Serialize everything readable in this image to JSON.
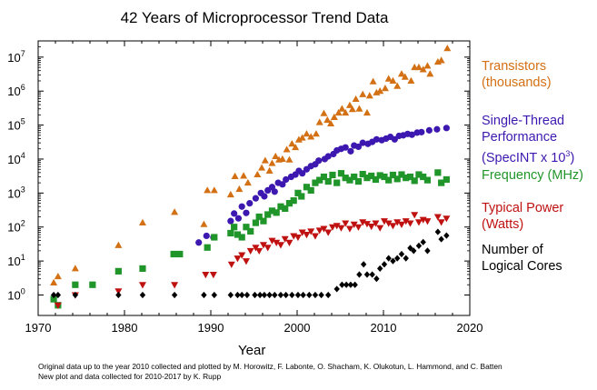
{
  "colors": {
    "transistors": "#d47014",
    "single_thread": "#3d18b0",
    "frequency": "#20952a",
    "power": "#c01111",
    "cores": "#000000"
  },
  "chart_data": {
    "type": "scatter",
    "title": "42 Years of Microprocessor Trend Data",
    "xlabel": "Year",
    "ylabel": "",
    "xlim": [
      1970,
      2020
    ],
    "ylim": [
      0.25,
      30000000
    ],
    "yscale": "log",
    "x_ticks": [
      1970,
      1980,
      1990,
      2000,
      2010,
      2020
    ],
    "y_ticks": [
      1,
      10,
      100,
      1000,
      10000,
      100000,
      1000000,
      10000000
    ],
    "y_tick_labels": [
      "10^0",
      "10^1",
      "10^2",
      "10^3",
      "10^4",
      "10^5",
      "10^6",
      "10^7"
    ],
    "legend_placement": "right",
    "grid": false,
    "series": [
      {
        "name": "Transistors (thousands)",
        "legend_lines": [
          "Transistors",
          "(thousands)"
        ],
        "marker": "triangle-up",
        "points": [
          [
            1971.8,
            2.3
          ],
          [
            1972.3,
            3.5
          ],
          [
            1974.3,
            6
          ],
          [
            1979.3,
            29
          ],
          [
            1982.1,
            134
          ],
          [
            1985.8,
            275
          ],
          [
            1989.2,
            120
          ],
          [
            1989.6,
            1200
          ],
          [
            1990.4,
            1200
          ],
          [
            1992.3,
            900
          ],
          [
            1992.8,
            3100
          ],
          [
            1993.3,
            1300
          ],
          [
            1993.8,
            3200
          ],
          [
            1994.3,
            2000
          ],
          [
            1995.4,
            3500
          ],
          [
            1995.9,
            5500
          ],
          [
            1996.3,
            9000
          ],
          [
            1996.8,
            4500
          ],
          [
            1997.1,
            7500
          ],
          [
            1997.5,
            12000
          ],
          [
            1997.9,
            9500
          ],
          [
            1998.3,
            10000
          ],
          [
            1998.8,
            19000
          ],
          [
            1999.1,
            9500
          ],
          [
            1999.4,
            28000
          ],
          [
            1999.8,
            22000
          ],
          [
            2000.2,
            37000
          ],
          [
            2000.6,
            42000
          ],
          [
            2001.1,
            55000
          ],
          [
            2001.6,
            45000
          ],
          [
            2002.2,
            55000
          ],
          [
            2002.6,
            120000
          ],
          [
            2003.1,
            220000
          ],
          [
            2003.5,
            140000
          ],
          [
            2003.9,
            110000
          ],
          [
            2004.3,
            170000
          ],
          [
            2004.8,
            230000
          ],
          [
            2005.2,
            300000
          ],
          [
            2005.6,
            230000
          ],
          [
            2006.1,
            380000
          ],
          [
            2006.4,
            290000
          ],
          [
            2006.8,
            580000
          ],
          [
            2007.2,
            300000
          ],
          [
            2007.6,
            800000
          ],
          [
            2008.1,
            230000
          ],
          [
            2008.4,
            730000
          ],
          [
            2008.8,
            1900000
          ],
          [
            2009.2,
            900000
          ],
          [
            2009.6,
            1000000
          ],
          [
            2010.2,
            1200000
          ],
          [
            2010.6,
            2300000
          ],
          [
            2011.1,
            2000000
          ],
          [
            2011.6,
            1400000
          ],
          [
            2012.1,
            3200000
          ],
          [
            2012.5,
            2600000
          ],
          [
            2013.2,
            2000000
          ],
          [
            2013.6,
            5000000
          ],
          [
            2014.1,
            5000000
          ],
          [
            2014.6,
            4300000
          ],
          [
            2015.1,
            5500000
          ],
          [
            2015.4,
            3200000
          ],
          [
            2016.3,
            7200000
          ],
          [
            2016.7,
            8000000
          ],
          [
            2017.4,
            18000000
          ]
        ]
      },
      {
        "name": "Single-Thread Performance (SpecINT x 10^3)",
        "legend_lines": [
          "Single-Thread",
          "Performance",
          "(SpecINT x 10^3)"
        ],
        "marker": "circle",
        "points": [
          [
            1988.6,
            35
          ],
          [
            1989.5,
            55
          ],
          [
            1990.3,
            50
          ],
          [
            1992.3,
            150
          ],
          [
            1992.7,
            250
          ],
          [
            1993.2,
            180
          ],
          [
            1993.6,
            400
          ],
          [
            1994.1,
            260
          ],
          [
            1994.5,
            500
          ],
          [
            1995.2,
            700
          ],
          [
            1995.8,
            1000
          ],
          [
            1996.2,
            800
          ],
          [
            1996.6,
            1200
          ],
          [
            1997.1,
            1500
          ],
          [
            1997.4,
            1100
          ],
          [
            1997.8,
            2000
          ],
          [
            1998.3,
            1800
          ],
          [
            1998.7,
            2500
          ],
          [
            1999.3,
            3000
          ],
          [
            1999.8,
            3500
          ],
          [
            2000.2,
            4500
          ],
          [
            2000.6,
            3800
          ],
          [
            2001.1,
            5000
          ],
          [
            2001.6,
            6200
          ],
          [
            2002.1,
            7000
          ],
          [
            2002.5,
            9000
          ],
          [
            2003.2,
            10000
          ],
          [
            2003.6,
            12000
          ],
          [
            2004.2,
            14000
          ],
          [
            2004.6,
            18000
          ],
          [
            2005.1,
            20000
          ],
          [
            2005.6,
            22000
          ],
          [
            2006.2,
            17000
          ],
          [
            2006.6,
            25000
          ],
          [
            2007.1,
            23000
          ],
          [
            2007.6,
            30000
          ],
          [
            2008.2,
            28000
          ],
          [
            2008.7,
            32000
          ],
          [
            2009.2,
            38000
          ],
          [
            2009.8,
            36000
          ],
          [
            2010.3,
            40000
          ],
          [
            2010.8,
            45000
          ],
          [
            2011.3,
            38000
          ],
          [
            2011.8,
            48000
          ],
          [
            2012.3,
            50000
          ],
          [
            2012.8,
            55000
          ],
          [
            2013.3,
            52000
          ],
          [
            2013.9,
            60000
          ],
          [
            2014.4,
            62000
          ],
          [
            2015.3,
            70000
          ],
          [
            2016.2,
            75000
          ],
          [
            2017.3,
            82000
          ]
        ]
      },
      {
        "name": "Frequency (MHz)",
        "legend_lines": [
          "Frequency (MHz)"
        ],
        "marker": "square",
        "points": [
          [
            1971.8,
            0.75
          ],
          [
            1972.3,
            0.5
          ],
          [
            1974.3,
            2
          ],
          [
            1976.3,
            2
          ],
          [
            1979.3,
            5
          ],
          [
            1982.1,
            6
          ],
          [
            1985.7,
            16
          ],
          [
            1986.4,
            16
          ],
          [
            1989.6,
            25
          ],
          [
            1990.4,
            50
          ],
          [
            1992.3,
            66
          ],
          [
            1992.7,
            100
          ],
          [
            1993.1,
            60
          ],
          [
            1993.6,
            50
          ],
          [
            1994.1,
            100
          ],
          [
            1994.6,
            75
          ],
          [
            1995.2,
            133
          ],
          [
            1995.6,
            200
          ],
          [
            1996.1,
            150
          ],
          [
            1996.6,
            233
          ],
          [
            1997.1,
            300
          ],
          [
            1997.6,
            266
          ],
          [
            1998.1,
            400
          ],
          [
            1998.6,
            350
          ],
          [
            1999.1,
            500
          ],
          [
            1999.6,
            600
          ],
          [
            2000.1,
            1000
          ],
          [
            2000.5,
            800
          ],
          [
            2001.1,
            1500
          ],
          [
            2001.6,
            1200
          ],
          [
            2002.1,
            2000
          ],
          [
            2002.6,
            2400
          ],
          [
            2003.1,
            3000
          ],
          [
            2003.6,
            2200
          ],
          [
            2004.1,
            3400
          ],
          [
            2004.6,
            2000
          ],
          [
            2005.1,
            3800
          ],
          [
            2005.6,
            2800
          ],
          [
            2006.1,
            2400
          ],
          [
            2006.6,
            3000
          ],
          [
            2007.1,
            2200
          ],
          [
            2007.6,
            3600
          ],
          [
            2008.1,
            2800
          ],
          [
            2008.6,
            3200
          ],
          [
            2009.1,
            2500
          ],
          [
            2009.6,
            3300
          ],
          [
            2010.1,
            3000
          ],
          [
            2010.6,
            2400
          ],
          [
            2011.1,
            3400
          ],
          [
            2011.6,
            2600
          ],
          [
            2012.1,
            3500
          ],
          [
            2012.6,
            2800
          ],
          [
            2013.1,
            3000
          ],
          [
            2013.6,
            2300
          ],
          [
            2014.1,
            3500
          ],
          [
            2014.6,
            3000
          ],
          [
            2015.1,
            2400
          ],
          [
            2016.3,
            4000
          ],
          [
            2016.7,
            2000
          ],
          [
            2017.3,
            2500
          ]
        ]
      },
      {
        "name": "Typical Power (Watts)",
        "legend_lines": [
          "Typical Power",
          "(Watts)"
        ],
        "marker": "triangle-down",
        "points": [
          [
            1972.3,
            0.5
          ],
          [
            1974.3,
            1
          ],
          [
            1979.3,
            1.3
          ],
          [
            1982.1,
            2
          ],
          [
            1985.8,
            2
          ],
          [
            1989.4,
            4
          ],
          [
            1990.3,
            4
          ],
          [
            1992.4,
            8
          ],
          [
            1993.1,
            12
          ],
          [
            1993.6,
            15
          ],
          [
            1994.1,
            10
          ],
          [
            1994.6,
            20
          ],
          [
            1995.2,
            25
          ],
          [
            1995.6,
            20
          ],
          [
            1996.1,
            30
          ],
          [
            1996.6,
            25
          ],
          [
            1997.1,
            40
          ],
          [
            1997.6,
            35
          ],
          [
            1998.1,
            30
          ],
          [
            1998.6,
            45
          ],
          [
            1999.1,
            35
          ],
          [
            1999.6,
            55
          ],
          [
            2000.1,
            50
          ],
          [
            2000.6,
            70
          ],
          [
            2001.1,
            60
          ],
          [
            2001.6,
            75
          ],
          [
            2002.1,
            55
          ],
          [
            2002.6,
            80
          ],
          [
            2003.1,
            90
          ],
          [
            2003.6,
            70
          ],
          [
            2004.1,
            100
          ],
          [
            2004.6,
            110
          ],
          [
            2005.1,
            95
          ],
          [
            2005.6,
            130
          ],
          [
            2006.1,
            90
          ],
          [
            2006.6,
            120
          ],
          [
            2007.1,
            100
          ],
          [
            2007.6,
            140
          ],
          [
            2008.1,
            125
          ],
          [
            2008.6,
            105
          ],
          [
            2009.1,
            130
          ],
          [
            2009.6,
            95
          ],
          [
            2010.1,
            150
          ],
          [
            2010.6,
            130
          ],
          [
            2011.1,
            110
          ],
          [
            2011.6,
            140
          ],
          [
            2012.1,
            120
          ],
          [
            2012.6,
            150
          ],
          [
            2013.1,
            130
          ],
          [
            2013.6,
            230
          ],
          [
            2014.1,
            140
          ],
          [
            2014.6,
            165
          ],
          [
            2015.1,
            150
          ],
          [
            2016.3,
            200
          ],
          [
            2016.7,
            140
          ],
          [
            2017.3,
            180
          ]
        ]
      },
      {
        "name": "Number of Logical Cores",
        "legend_lines": [
          "Number of",
          "Logical Cores"
        ],
        "marker": "diamond",
        "points": [
          [
            1971.8,
            1
          ],
          [
            1972.3,
            1
          ],
          [
            1974.3,
            1
          ],
          [
            1979.3,
            1
          ],
          [
            1982.1,
            1
          ],
          [
            1985.8,
            1
          ],
          [
            1989.2,
            1
          ],
          [
            1990.4,
            1
          ],
          [
            1992.3,
            1
          ],
          [
            1993.1,
            1
          ],
          [
            1993.6,
            1
          ],
          [
            1994.2,
            1
          ],
          [
            1995.1,
            1
          ],
          [
            1995.7,
            1
          ],
          [
            1996.2,
            1
          ],
          [
            1996.8,
            1
          ],
          [
            1997.4,
            1
          ],
          [
            1998.1,
            1
          ],
          [
            1998.7,
            1
          ],
          [
            1999.4,
            1
          ],
          [
            2000.1,
            1
          ],
          [
            2000.7,
            1
          ],
          [
            2001.4,
            1
          ],
          [
            2002.1,
            1
          ],
          [
            2002.8,
            1
          ],
          [
            2003.6,
            1
          ],
          [
            2004.6,
            1.5
          ],
          [
            2005.2,
            2
          ],
          [
            2005.7,
            2
          ],
          [
            2006.2,
            2
          ],
          [
            2006.7,
            2
          ],
          [
            2007.2,
            4
          ],
          [
            2007.7,
            8
          ],
          [
            2008.1,
            4
          ],
          [
            2008.7,
            4
          ],
          [
            2009.2,
            3
          ],
          [
            2009.6,
            6
          ],
          [
            2010.1,
            8
          ],
          [
            2010.6,
            12
          ],
          [
            2011.1,
            10
          ],
          [
            2011.6,
            12
          ],
          [
            2012.1,
            16
          ],
          [
            2012.6,
            12
          ],
          [
            2013.1,
            24
          ],
          [
            2013.5,
            20
          ],
          [
            2014.1,
            28
          ],
          [
            2014.6,
            36
          ],
          [
            2015.1,
            20
          ],
          [
            2016.3,
            72
          ],
          [
            2016.7,
            44
          ],
          [
            2017.3,
            56
          ]
        ]
      }
    ]
  },
  "footnote": {
    "line1": "Original data up to the year 2010 collected and plotted by M. Horowitz, F. Labonte, O. Shacham, K. Olukotun, L. Hammond, and C. Batten",
    "line2": "New plot and data collected for 2010-2017 by K. Rupp"
  }
}
